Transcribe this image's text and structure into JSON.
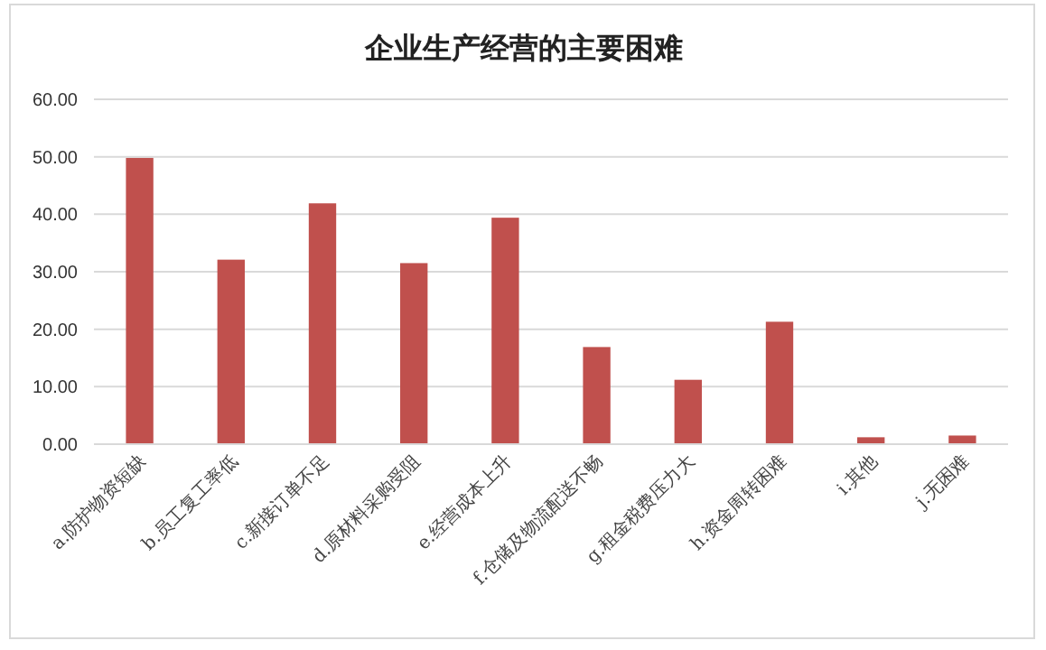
{
  "chart_data": {
    "type": "bar",
    "title": "企业生产经营的主要困难",
    "categories": [
      "a.防护物资短缺",
      "b.员工复工率低",
      "c.新接订单不足",
      "d.原材料采购受阻",
      "e.经营成本上升",
      "f.仓储及物流配送不畅",
      "g.租金税费压力大",
      "h.资金周转困难",
      "i.其他",
      "j.无困难"
    ],
    "values": [
      49.8,
      32.1,
      41.9,
      31.5,
      39.4,
      16.9,
      11.2,
      21.3,
      1.2,
      1.5
    ],
    "color": "#c0504d",
    "ylim": [
      0,
      60
    ],
    "yticks": [
      {
        "value": 0,
        "label": "0.00"
      },
      {
        "value": 10,
        "label": "10.00"
      },
      {
        "value": 20,
        "label": "20.00"
      },
      {
        "value": 30,
        "label": "30.00"
      },
      {
        "value": 40,
        "label": "40.00"
      },
      {
        "value": 50,
        "label": "50.00"
      },
      {
        "value": 60,
        "label": "60.00"
      }
    ],
    "grid": "y"
  }
}
